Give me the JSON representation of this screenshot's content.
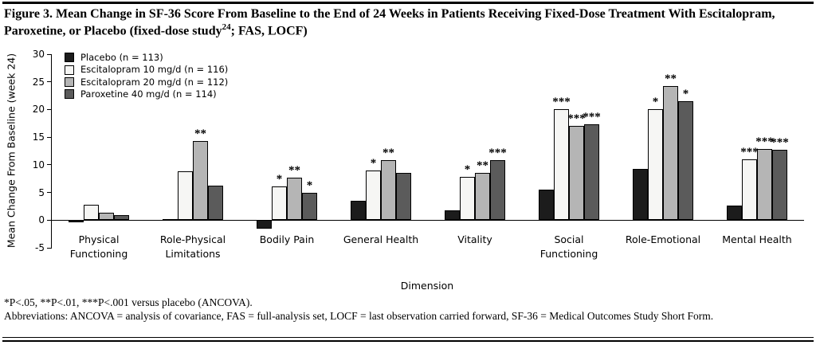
{
  "figure": {
    "title_prefix": "Figure 3. Mean Change in SF-36 Score From Baseline to the End of 24 Weeks in Patients Receiving Fixed-Dose Treatment With Escitalopram, Paroxetine, or Placebo (fixed-dose study",
    "title_superscript": "24",
    "title_suffix": "; FAS, LOCF)"
  },
  "footnotes": {
    "significance": "*P<.05, **P<.01, ***P<.001 versus placebo (ANCOVA).",
    "abbreviations": "Abbreviations: ANCOVA = analysis of covariance, FAS = full-analysis set, LOCF = last observation carried forward, SF-36 = Medical Outcomes Study Short Form."
  },
  "chart_data": {
    "type": "bar",
    "title": "",
    "xlabel": "Dimension",
    "ylabel": "Mean Change From Baseline (week 24)",
    "ylim": [
      -5,
      30
    ],
    "ytick_step": 5,
    "grid": false,
    "legend_position": "top-left",
    "categories": [
      "Physical\nFunctioning",
      "Role-Physical\nLimitations",
      "Bodily Pain",
      "General Health",
      "Vitality",
      "Social\nFunctioning",
      "Role-Emotional",
      "Mental Health"
    ],
    "series": [
      {
        "name": "Placebo (n = 113)",
        "color": "#1c1c1c",
        "values": [
          -0.4,
          0.2,
          -1.6,
          3.5,
          1.8,
          5.5,
          9.2,
          2.7
        ],
        "sig": [
          "",
          "",
          "",
          "",
          "",
          "",
          "",
          ""
        ]
      },
      {
        "name": "Escitalopram 10 mg/d (n = 116)",
        "color": "#f6f6f4",
        "values": [
          2.8,
          8.8,
          6.1,
          9.0,
          7.8,
          20.0,
          20.0,
          11.0
        ],
        "sig": [
          "",
          "",
          "*",
          "*",
          "*",
          "***",
          "*",
          "***"
        ]
      },
      {
        "name": "Escitalopram 20 mg/d (n = 112)",
        "color": "#b5b5b5",
        "values": [
          1.3,
          14.3,
          7.7,
          10.8,
          8.5,
          17.0,
          24.2,
          12.9
        ],
        "sig": [
          "",
          "**",
          "**",
          "**",
          "**",
          "***",
          "**",
          "***"
        ]
      },
      {
        "name": "Paroxetine 40 mg/d (n = 114)",
        "color": "#5b5b5b",
        "values": [
          0.9,
          6.3,
          4.9,
          8.6,
          10.8,
          17.3,
          21.5,
          12.7
        ],
        "sig": [
          "",
          "",
          "*",
          "",
          "***",
          "***",
          "*",
          "***"
        ]
      }
    ]
  }
}
